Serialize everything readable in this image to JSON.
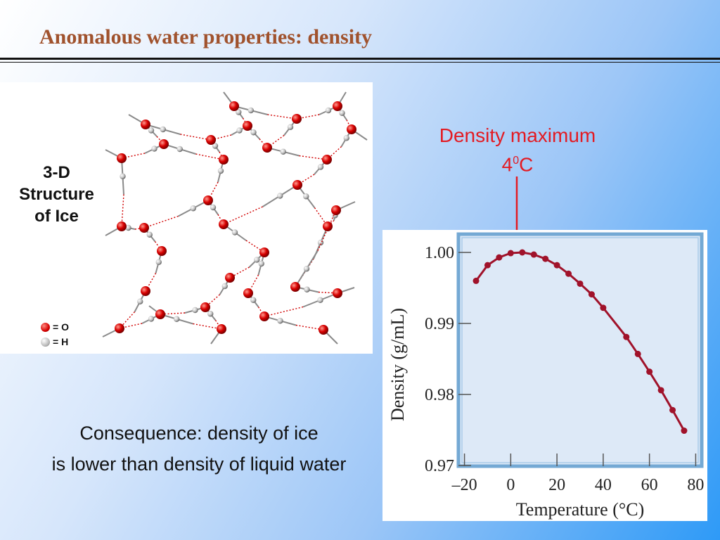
{
  "slide": {
    "title": "Anomalous water properties: density"
  },
  "ice_figure": {
    "caption": [
      "3-D",
      "Structure",
      "of Ice"
    ],
    "legend": [
      {
        "symbol": "O",
        "text": "= O",
        "color": "#d50000"
      },
      {
        "symbol": "H",
        "text": "= H",
        "color": "#bbbbbb"
      }
    ]
  },
  "annotation": {
    "line1": "Density maximum",
    "line2_value": "4",
    "line2_sup": "0",
    "line2_unit": "C",
    "color": "#e31b23"
  },
  "consequence": {
    "line1": "Consequence: density of ice",
    "line2": "is lower than density of liquid water"
  },
  "chart_data": {
    "type": "line",
    "xlabel": "Temperature (°C)",
    "ylabel": "Density (g/mL)",
    "xlim": [
      -22,
      82
    ],
    "ylim": [
      0.97,
      1.0
    ],
    "x_ticks": [
      -20,
      0,
      20,
      40,
      60,
      80
    ],
    "x_tick_labels": [
      "–20",
      "0",
      "20",
      "40",
      "60",
      "80"
    ],
    "y_ticks": [
      0.97,
      0.98,
      0.99,
      1.0
    ],
    "y_tick_labels": [
      "0.97",
      "0.98",
      "0.99",
      "1.00"
    ],
    "grid": false,
    "series": [
      {
        "color": "#a0122a",
        "x": [
          -15,
          -10,
          -5,
          0,
          5,
          10,
          15,
          20,
          25,
          30,
          35,
          40,
          50,
          55,
          60,
          65,
          70,
          75
        ],
        "y": [
          0.996,
          0.9982,
          0.9993,
          0.9999,
          1.0,
          0.9997,
          0.9991,
          0.9982,
          0.997,
          0.9956,
          0.9941,
          0.9922,
          0.9881,
          0.9857,
          0.9832,
          0.9806,
          0.9778,
          0.9749
        ]
      }
    ]
  }
}
